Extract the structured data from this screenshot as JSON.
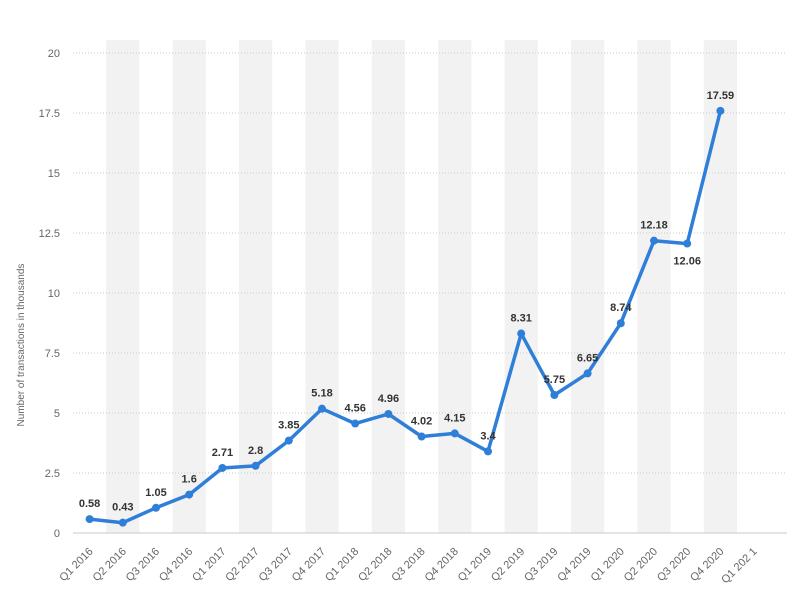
{
  "chart_data": {
    "type": "line",
    "xlabel": "",
    "ylabel": "Number of transactions in thousands",
    "ylim": [
      0,
      20
    ],
    "yticks": [
      0,
      2.5,
      5,
      7.5,
      10,
      12.5,
      15,
      17.5,
      20
    ],
    "ytick_labels": [
      "0",
      "2.5",
      "5",
      "7.5",
      "10",
      "12.5",
      "15",
      "17.5",
      "20"
    ],
    "grid": true,
    "categories": [
      "Q1 2016",
      "Q2 2016",
      "Q3 2016",
      "Q4 2016",
      "Q1 2017",
      "Q2 2017",
      "Q3 2017",
      "Q4 2017",
      "Q1 2018",
      "Q2 2018",
      "Q3 2018",
      "Q4 2018",
      "Q1 2019",
      "Q2 2019",
      "Q3 2019",
      "Q4 2019",
      "Q1 2020",
      "Q2 2020",
      "Q3 2020",
      "Q4 2020",
      "Q1 202 1"
    ],
    "series": [
      {
        "values": [
          0.58,
          0.43,
          1.05,
          1.6,
          2.71,
          2.8,
          3.85,
          5.18,
          4.56,
          4.96,
          4.02,
          4.15,
          3.4,
          8.31,
          5.75,
          6.65,
          8.74,
          12.18,
          12.06,
          17.59,
          null
        ],
        "labels": [
          "0.58",
          "0.43",
          "1.05",
          "1.6",
          "2.71",
          "2.8",
          "3.85",
          "5.18",
          "4.56",
          "4.96",
          "4.02",
          "4.15",
          "3.4",
          "8.31",
          "5.75",
          "6.65",
          "8.74",
          "12.18",
          "12.06",
          "17.59",
          ""
        ]
      }
    ],
    "colors": {
      "line": "#2f7ed8",
      "band": "#f2f2f2",
      "grid": "#c9c9c9",
      "tick": "#666666",
      "label": "#333333"
    }
  }
}
